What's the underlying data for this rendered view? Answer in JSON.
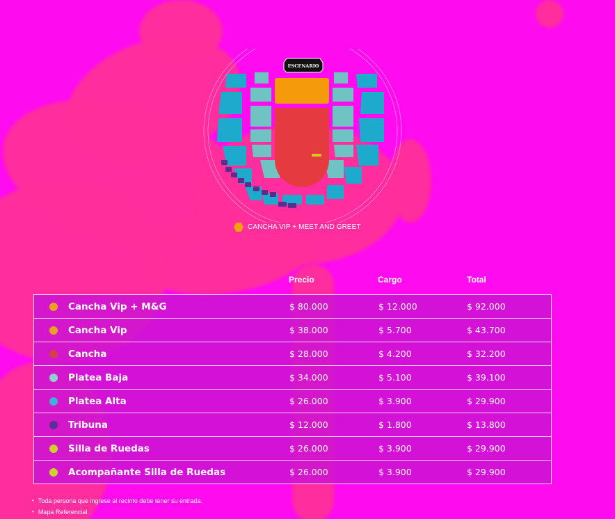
{
  "map": {
    "stage_label": "ESCENARIO",
    "colors": {
      "cancha_vip_mg": "#f59a0a",
      "cancha": "#e53a40",
      "platea_baja": "#6fc3c3",
      "platea_alta": "#1eaacc",
      "tribuna": "#5a2d8f",
      "wheelchair": "#d8c81a"
    }
  },
  "legend": {
    "icon": "hexagon-icon",
    "label": "CANCHA VIP + MEET AND GREET"
  },
  "table": {
    "headers": {
      "precio": "Precio",
      "cargo": "Cargo",
      "total": "Total"
    },
    "rows": [
      {
        "name": "Cancha Vip + M&G",
        "color": "#e8a21e",
        "precio": "$ 80.000",
        "cargo": "$ 12.000",
        "total": "$ 92.000"
      },
      {
        "name": "Cancha Vip",
        "color": "#e8a21e",
        "precio": "$ 38.000",
        "cargo": "$ 5.700",
        "total": "$ 43.700"
      },
      {
        "name": "Cancha",
        "color": "#d3404a",
        "precio": "$ 28.000",
        "cargo": "$ 4.200",
        "total": "$ 32.200"
      },
      {
        "name": "Platea Baja",
        "color": "#8fcfcf",
        "precio": "$ 34.000",
        "cargo": "$ 5.100",
        "total": "$ 39.100"
      },
      {
        "name": "Platea Alta",
        "color": "#3fb0d8",
        "precio": "$ 26.000",
        "cargo": "$ 3.900",
        "total": "$ 29.900"
      },
      {
        "name": "Tribuna",
        "color": "#5a2f95",
        "precio": "$ 12.000",
        "cargo": "$ 1.800",
        "total": "$ 13.800"
      },
      {
        "name": "Silla de Ruedas",
        "color": "#cdd12a",
        "precio": "$ 26.000",
        "cargo": "$ 3.900",
        "total": "$ 29.900"
      },
      {
        "name": "Acompañante Silla de Ruedas",
        "color": "#cdd12a",
        "precio": "$ 26.000",
        "cargo": "$ 3.900",
        "total": "$ 29.900"
      }
    ]
  },
  "notes": [
    "Toda persona que ingrese al recinto debe tener su entrada.",
    "Mapa Referencial."
  ]
}
